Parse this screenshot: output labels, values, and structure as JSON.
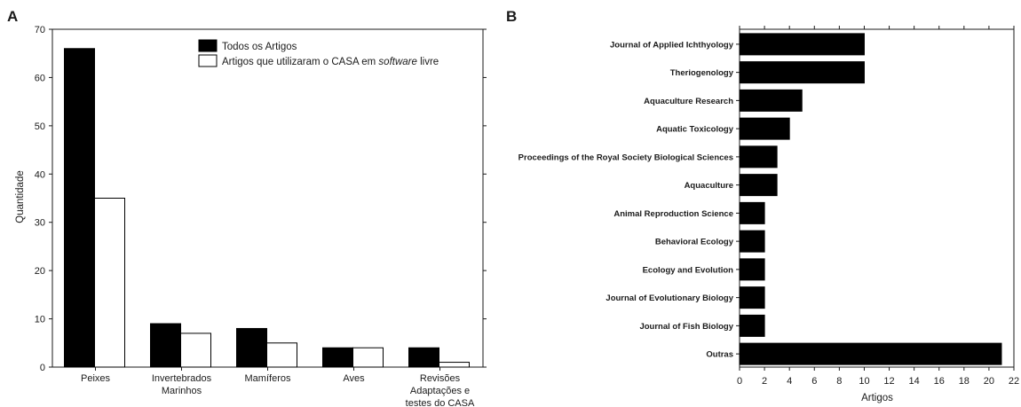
{
  "panels": {
    "a_letter": "A",
    "b_letter": "B"
  },
  "chart_data": [
    {
      "type": "bar",
      "panel": "A",
      "title": "",
      "xlabel": "",
      "ylabel": "Quantidade",
      "ylim": [
        0,
        70
      ],
      "yticks": [
        0,
        10,
        20,
        30,
        40,
        50,
        60,
        70
      ],
      "categories": [
        [
          "Peixes"
        ],
        [
          "Invertebrados",
          "Marinhos"
        ],
        [
          "Mamíferos"
        ],
        [
          "Aves"
        ],
        [
          "Revisões",
          "Adaptações e",
          "testes do CASA"
        ]
      ],
      "series": [
        {
          "name": "Todos os Artigos",
          "values": [
            66,
            9,
            8,
            4,
            4
          ],
          "color": "#000000"
        },
        {
          "name": "Artigos que utilizaram o CASA em software livre",
          "values": [
            35,
            7,
            5,
            4,
            1
          ],
          "color": "#ffffff"
        }
      ],
      "legend": {
        "placement": "top-right",
        "entries": [
          {
            "parts": [
              {
                "text": "Todos os Artigos",
                "italic": false
              }
            ]
          },
          {
            "parts": [
              {
                "text": "Artigos que utilizaram o CASA em ",
                "italic": false
              },
              {
                "text": "software",
                "italic": true
              },
              {
                "text": " livre",
                "italic": false
              }
            ]
          }
        ]
      },
      "grid": false
    },
    {
      "type": "bar",
      "orientation": "horizontal",
      "panel": "B",
      "title": "",
      "xlabel": "Artigos",
      "ylabel": "",
      "xlim": [
        0,
        22
      ],
      "xticks": [
        0,
        2,
        4,
        6,
        8,
        10,
        12,
        14,
        16,
        18,
        20,
        22
      ],
      "categories": [
        "Journal of Applied Ichthyology",
        "Theriogenology",
        "Aquaculture Research",
        "Aquatic Toxicology",
        "Proceedings of the Royal Society Biological Sciences",
        "Aquaculture",
        "Animal Reproduction Science",
        "Behavioral Ecology",
        "Ecology and Evolution",
        "Journal of Evolutionary Biology",
        "Journal of Fish Biology",
        "Outras"
      ],
      "values": [
        10,
        10,
        5,
        4,
        3,
        3,
        2,
        2,
        2,
        2,
        2,
        21
      ],
      "color": "#000000",
      "grid": false
    }
  ]
}
